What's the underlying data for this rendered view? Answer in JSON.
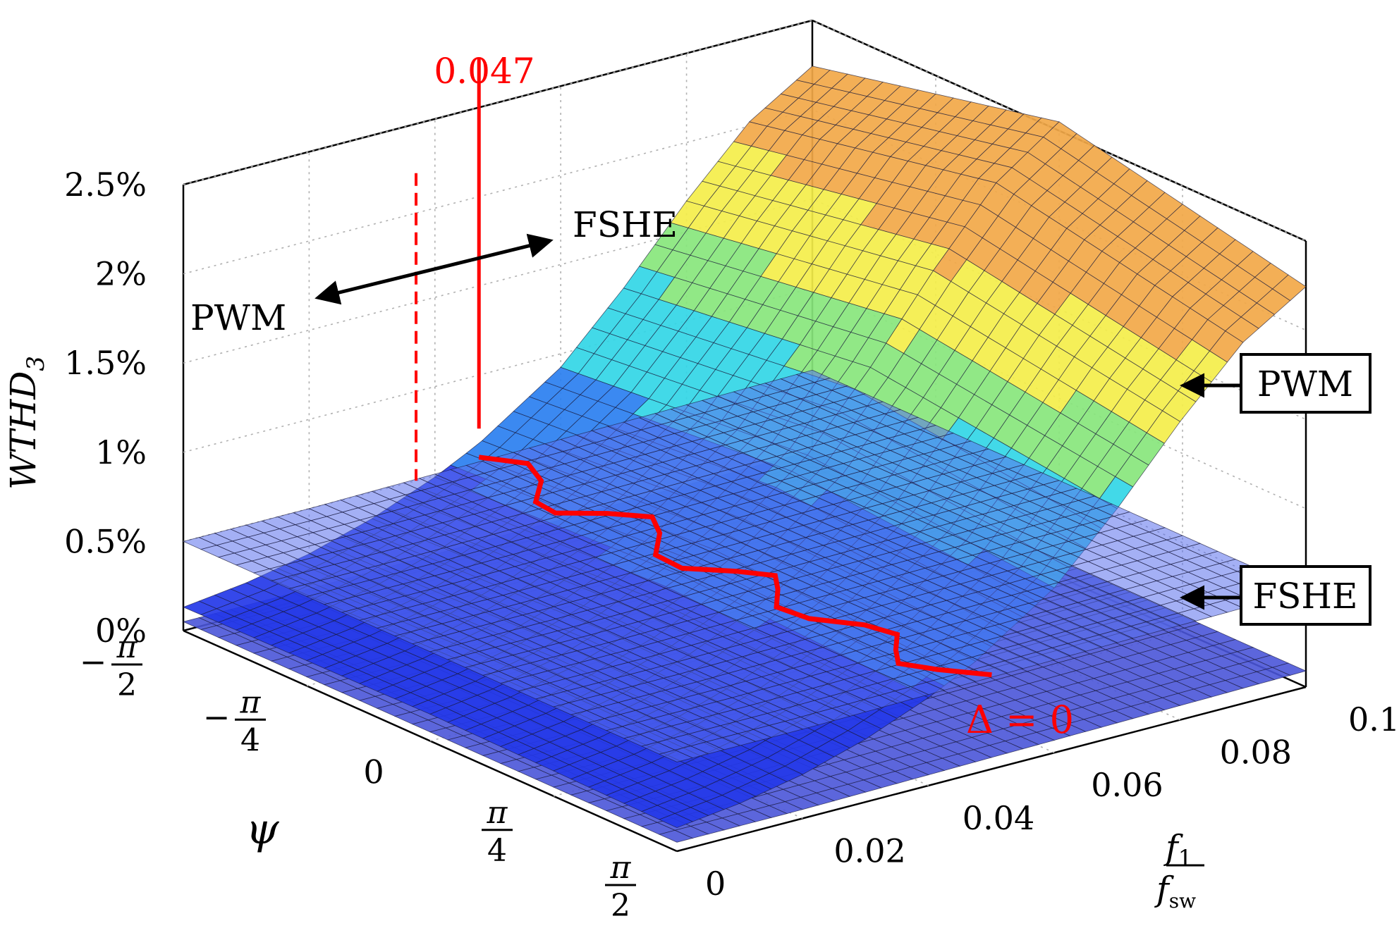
{
  "chart_data": {
    "type": "surface",
    "title": "",
    "xlabel": "f1 / fsw",
    "xlabel_num": "f",
    "xlabel_num_sub": "1",
    "xlabel_den": "f",
    "xlabel_den_sub": "sw",
    "ylabel": "ψ",
    "zlabel": "WTHD3",
    "zlabel_main": "WTHD",
    "zlabel_sub": "3",
    "x_ticks": [
      "0",
      "0.02",
      "0.04",
      "0.06",
      "0.08",
      "0.1"
    ],
    "x_range": [
      0,
      0.1
    ],
    "y_ticks": [
      {
        "sign": "−",
        "num": "π",
        "den": "2"
      },
      {
        "sign": "−",
        "num": "π",
        "den": "4"
      },
      {
        "plain": "0"
      },
      {
        "sign": "",
        "num": "π",
        "den": "4"
      },
      {
        "sign": "",
        "num": "π",
        "den": "2"
      }
    ],
    "y_range": [
      "-π/2",
      "π/2"
    ],
    "z_ticks": [
      "0%",
      "0.5%",
      "1%",
      "1.5%",
      "2%",
      "2.5%"
    ],
    "z_range": [
      0,
      2.5
    ],
    "grid": true,
    "series": [
      {
        "name": "PWM",
        "x": [
          0,
          0.01,
          0.02,
          0.03,
          0.04,
          0.047,
          0.06,
          0.07,
          0.08,
          0.09,
          0.1
        ],
        "z_percent": [
          0.15,
          0.2,
          0.28,
          0.4,
          0.56,
          0.7,
          1.05,
          1.45,
          1.9,
          2.3,
          2.55
        ]
      },
      {
        "name": "FSHE",
        "x": [
          0,
          0.02,
          0.04,
          0.06,
          0.08,
          0.1
        ],
        "z_percent": [
          0.5,
          0.5,
          0.51,
          0.52,
          0.53,
          0.54
        ]
      }
    ],
    "annotations": {
      "threshold_value": "0.047",
      "threshold_label": "Δ = 0",
      "region_left": "PWM",
      "region_right": "FSHE",
      "surface_label_top": "PWM",
      "surface_label_bottom": "FSHE"
    },
    "colors": {
      "threshold": "#ff0000",
      "fshe_surface": "#4a5fe6",
      "pwm_low": "#1f3cf0",
      "pwm_mid": "#2ed0e8",
      "pwm_high": "#e84a38",
      "grid": "#b0b0b0"
    }
  }
}
